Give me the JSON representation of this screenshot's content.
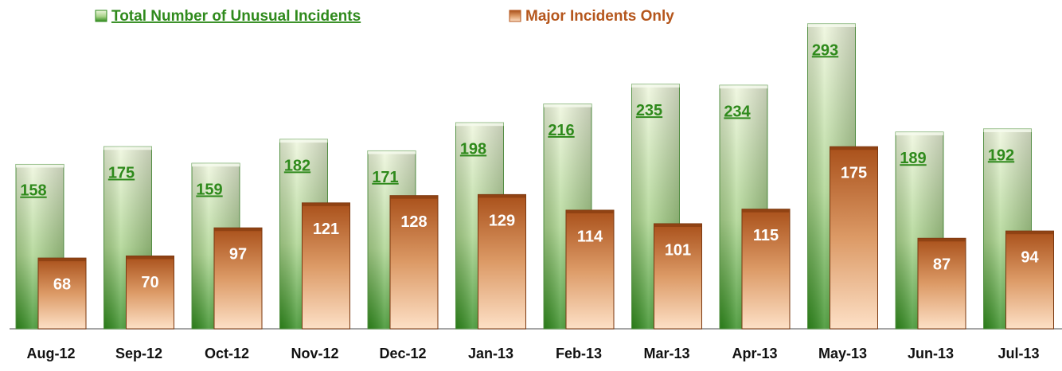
{
  "chart_data": {
    "type": "bar",
    "categories": [
      "Aug-12",
      "Sep-12",
      "Oct-12",
      "Nov-12",
      "Dec-12",
      "Jan-13",
      "Feb-13",
      "Mar-13",
      "Apr-13",
      "May-13",
      "Jun-13",
      "Jul-13"
    ],
    "series": [
      {
        "name": "Total Number of Unusual Incidents",
        "color": "#2f8a1c",
        "values": [
          158,
          175,
          159,
          182,
          171,
          198,
          216,
          235,
          234,
          293,
          189,
          192
        ]
      },
      {
        "name": "Major Incidents Only",
        "color": "#b5561c",
        "values": [
          68,
          70,
          97,
          121,
          128,
          129,
          114,
          101,
          115,
          175,
          87,
          94
        ]
      }
    ],
    "legend": "top"
  }
}
